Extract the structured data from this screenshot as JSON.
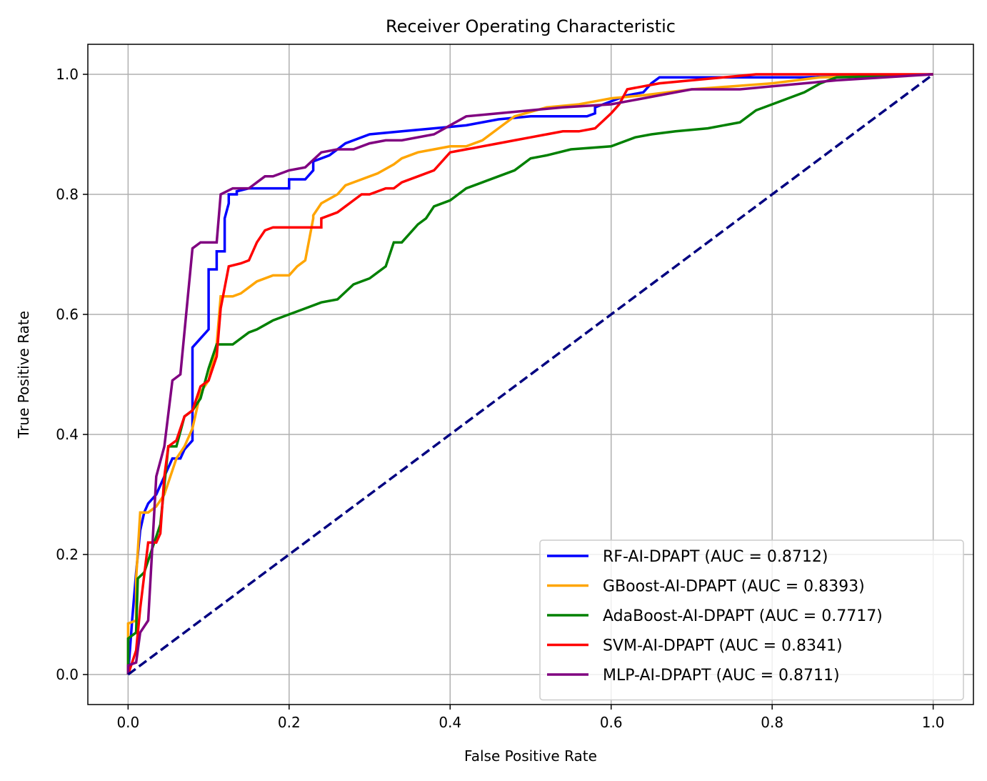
{
  "chart_data": {
    "type": "line",
    "title": "Receiver Operating Characteristic",
    "xlabel": "False Positive Rate",
    "ylabel": "True Positive Rate",
    "xlim": [
      -0.05,
      1.05
    ],
    "ylim": [
      -0.05,
      1.05
    ],
    "xticks": [
      "0.0",
      "0.2",
      "0.4",
      "0.6",
      "0.8",
      "1.0"
    ],
    "yticks": [
      "0.0",
      "0.2",
      "0.4",
      "0.6",
      "0.8",
      "1.0"
    ],
    "grid": true,
    "legend_position": "bottom-right",
    "diagonal": {
      "color": "#000080",
      "style": "dashed",
      "x": [
        0,
        1
      ],
      "y": [
        0,
        1
      ]
    },
    "series": [
      {
        "name": "RF-AI-DPAPT (AUC = 0.8712)",
        "color": "#0000ff",
        "x": [
          0,
          0.005,
          0.01,
          0.015,
          0.02,
          0.025,
          0.035,
          0.045,
          0.055,
          0.065,
          0.07,
          0.08,
          0.08,
          0.09,
          0.1,
          0.1,
          0.11,
          0.11,
          0.12,
          0.12,
          0.125,
          0.125,
          0.135,
          0.135,
          0.15,
          0.17,
          0.19,
          0.2,
          0.2,
          0.22,
          0.23,
          0.23,
          0.25,
          0.26,
          0.27,
          0.28,
          0.3,
          0.34,
          0.38,
          0.42,
          0.46,
          0.5,
          0.55,
          0.57,
          0.58,
          0.58,
          0.62,
          0.64,
          0.65,
          0.66,
          0.75,
          0.78,
          0.84,
          1.0
        ],
        "y": [
          0,
          0.09,
          0.17,
          0.24,
          0.27,
          0.285,
          0.3,
          0.33,
          0.36,
          0.36,
          0.375,
          0.39,
          0.545,
          0.56,
          0.575,
          0.675,
          0.675,
          0.705,
          0.705,
          0.76,
          0.785,
          0.8,
          0.8,
          0.805,
          0.81,
          0.81,
          0.81,
          0.81,
          0.825,
          0.825,
          0.84,
          0.855,
          0.865,
          0.875,
          0.885,
          0.89,
          0.9,
          0.905,
          0.91,
          0.915,
          0.925,
          0.93,
          0.93,
          0.93,
          0.935,
          0.945,
          0.965,
          0.97,
          0.985,
          0.995,
          0.995,
          0.995,
          0.995,
          1.0
        ]
      },
      {
        "name": "GBoost-AI-DPAPT (AUC = 0.8393)",
        "color": "#ffa500",
        "x": [
          0,
          0.0,
          0.01,
          0.01,
          0.015,
          0.025,
          0.035,
          0.045,
          0.06,
          0.07,
          0.08,
          0.09,
          0.1,
          0.11,
          0.115,
          0.13,
          0.14,
          0.15,
          0.16,
          0.18,
          0.2,
          0.21,
          0.22,
          0.23,
          0.23,
          0.24,
          0.26,
          0.27,
          0.29,
          0.31,
          0.33,
          0.34,
          0.36,
          0.38,
          0.4,
          0.42,
          0.44,
          0.46,
          0.48,
          0.52,
          0.56,
          0.58,
          0.6,
          0.64,
          0.7,
          0.8,
          0.86,
          1.0
        ],
        "y": [
          0,
          0.085,
          0.09,
          0.16,
          0.27,
          0.27,
          0.28,
          0.3,
          0.36,
          0.38,
          0.41,
          0.47,
          0.49,
          0.55,
          0.63,
          0.63,
          0.635,
          0.645,
          0.655,
          0.665,
          0.665,
          0.68,
          0.69,
          0.76,
          0.765,
          0.785,
          0.8,
          0.815,
          0.825,
          0.835,
          0.85,
          0.86,
          0.87,
          0.875,
          0.88,
          0.88,
          0.89,
          0.91,
          0.93,
          0.945,
          0.95,
          0.955,
          0.96,
          0.965,
          0.975,
          0.985,
          0.995,
          1.0
        ]
      },
      {
        "name": "AdaBoost-AI-DPAPT (AUC = 0.7717)",
        "color": "#008000",
        "x": [
          0,
          0.0,
          0.01,
          0.012,
          0.02,
          0.03,
          0.04,
          0.05,
          0.06,
          0.07,
          0.08,
          0.09,
          0.1,
          0.11,
          0.12,
          0.13,
          0.15,
          0.16,
          0.18,
          0.2,
          0.22,
          0.24,
          0.26,
          0.28,
          0.3,
          0.32,
          0.33,
          0.34,
          0.36,
          0.37,
          0.38,
          0.4,
          0.42,
          0.44,
          0.46,
          0.48,
          0.5,
          0.52,
          0.55,
          0.6,
          0.63,
          0.65,
          0.68,
          0.72,
          0.76,
          0.78,
          0.8,
          0.84,
          0.86,
          0.88,
          1.0
        ],
        "y": [
          0,
          0.06,
          0.07,
          0.16,
          0.17,
          0.21,
          0.25,
          0.38,
          0.38,
          0.43,
          0.44,
          0.46,
          0.51,
          0.55,
          0.55,
          0.55,
          0.57,
          0.575,
          0.59,
          0.6,
          0.61,
          0.62,
          0.625,
          0.65,
          0.66,
          0.68,
          0.72,
          0.72,
          0.75,
          0.76,
          0.78,
          0.79,
          0.81,
          0.82,
          0.83,
          0.84,
          0.86,
          0.865,
          0.875,
          0.88,
          0.895,
          0.9,
          0.905,
          0.91,
          0.92,
          0.94,
          0.95,
          0.97,
          0.985,
          0.995,
          1.0
        ]
      },
      {
        "name": "SVM-AI-DPAPT (AUC = 0.8341)",
        "color": "#ff0000",
        "x": [
          0,
          0.01,
          0.015,
          0.025,
          0.035,
          0.04,
          0.045,
          0.05,
          0.06,
          0.07,
          0.08,
          0.09,
          0.1,
          0.11,
          0.115,
          0.125,
          0.14,
          0.15,
          0.16,
          0.17,
          0.18,
          0.2,
          0.22,
          0.24,
          0.24,
          0.26,
          0.27,
          0.28,
          0.29,
          0.3,
          0.32,
          0.33,
          0.34,
          0.36,
          0.38,
          0.4,
          0.42,
          0.44,
          0.46,
          0.48,
          0.5,
          0.52,
          0.54,
          0.56,
          0.58,
          0.6,
          0.61,
          0.62,
          0.64,
          0.66,
          0.7,
          0.78,
          0.8,
          1.0
        ],
        "y": [
          0,
          0.04,
          0.11,
          0.22,
          0.22,
          0.235,
          0.33,
          0.38,
          0.39,
          0.43,
          0.44,
          0.48,
          0.49,
          0.53,
          0.61,
          0.68,
          0.685,
          0.69,
          0.72,
          0.74,
          0.745,
          0.745,
          0.745,
          0.745,
          0.76,
          0.77,
          0.78,
          0.79,
          0.8,
          0.8,
          0.81,
          0.81,
          0.82,
          0.83,
          0.84,
          0.87,
          0.875,
          0.88,
          0.885,
          0.89,
          0.895,
          0.9,
          0.905,
          0.905,
          0.91,
          0.935,
          0.95,
          0.975,
          0.98,
          0.985,
          0.99,
          1.0,
          1.0,
          1.0
        ]
      },
      {
        "name": "MLP-AI-DPAPT (AUC = 0.8711)",
        "color": "#800080",
        "x": [
          0,
          0.0,
          0.01,
          0.015,
          0.025,
          0.035,
          0.045,
          0.055,
          0.065,
          0.08,
          0.09,
          0.1,
          0.11,
          0.115,
          0.13,
          0.15,
          0.16,
          0.17,
          0.18,
          0.2,
          0.22,
          0.24,
          0.26,
          0.28,
          0.3,
          0.32,
          0.34,
          0.38,
          0.42,
          0.46,
          0.5,
          0.54,
          0.6,
          0.64,
          0.66,
          0.7,
          0.76,
          0.8,
          0.88,
          1.0
        ],
        "y": [
          0,
          0.015,
          0.02,
          0.07,
          0.09,
          0.33,
          0.38,
          0.49,
          0.5,
          0.71,
          0.72,
          0.72,
          0.72,
          0.8,
          0.81,
          0.81,
          0.82,
          0.83,
          0.83,
          0.84,
          0.845,
          0.87,
          0.875,
          0.875,
          0.885,
          0.89,
          0.89,
          0.9,
          0.93,
          0.935,
          0.94,
          0.945,
          0.95,
          0.96,
          0.965,
          0.975,
          0.975,
          0.98,
          0.99,
          1.0
        ]
      }
    ]
  }
}
